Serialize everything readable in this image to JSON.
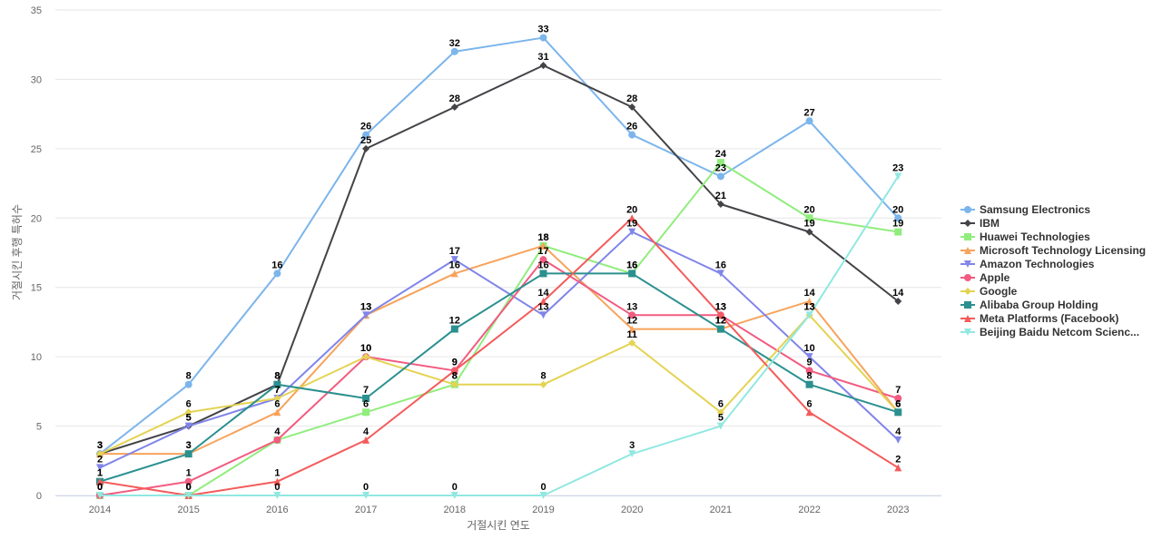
{
  "chart_data": {
    "type": "line",
    "title": "",
    "xlabel": "거절시킨 연도",
    "ylabel": "거절시킨 후행 특허수",
    "x": [
      "2014",
      "2015",
      "2016",
      "2017",
      "2018",
      "2019",
      "2020",
      "2021",
      "2022",
      "2023"
    ],
    "ylim": [
      0,
      35
    ],
    "yticks": [
      0,
      5,
      10,
      15,
      20,
      25,
      30,
      35
    ],
    "grid": true,
    "legend_position": "right",
    "series": [
      {
        "name": "Samsung Electronics",
        "color": "#7cb5ec",
        "marker": "circle",
        "values": [
          3,
          8,
          16,
          26,
          32,
          33,
          26,
          23,
          27,
          20
        ]
      },
      {
        "name": "IBM",
        "color": "#434348",
        "marker": "diamond",
        "values": [
          3,
          5,
          8,
          25,
          28,
          31,
          28,
          21,
          19,
          14
        ]
      },
      {
        "name": "Huawei Technologies",
        "color": "#90ed7d",
        "marker": "square",
        "values": [
          0,
          0,
          4,
          6,
          8,
          18,
          16,
          24,
          20,
          19
        ]
      },
      {
        "name": "Microsoft Technology Licensing",
        "color": "#f7a35c",
        "marker": "triangle",
        "values": [
          3,
          3,
          6,
          13,
          16,
          18,
          12,
          12,
          14,
          6
        ]
      },
      {
        "name": "Amazon Technologies",
        "color": "#8085e9",
        "marker": "triangle-down",
        "values": [
          2,
          5,
          7,
          13,
          17,
          13,
          19,
          16,
          10,
          4
        ]
      },
      {
        "name": "Apple",
        "color": "#f15c80",
        "marker": "circle",
        "values": [
          0,
          1,
          4,
          10,
          9,
          17,
          13,
          13,
          9,
          7
        ]
      },
      {
        "name": "Google",
        "color": "#e4d354",
        "marker": "diamond",
        "values": [
          3,
          6,
          7,
          10,
          8,
          8,
          11,
          6,
          13,
          6
        ]
      },
      {
        "name": "Alibaba Group Holding",
        "color": "#2b908f",
        "marker": "square",
        "values": [
          1,
          3,
          8,
          7,
          12,
          16,
          16,
          12,
          8,
          6
        ]
      },
      {
        "name": "Meta Platforms (Facebook)",
        "color": "#f45b5b",
        "marker": "triangle",
        "values": [
          1,
          0,
          1,
          4,
          9,
          14,
          20,
          13,
          6,
          2
        ]
      },
      {
        "name": "Beijing Baidu Netcom Scienc...",
        "color": "#91e8e1",
        "marker": "triangle-down",
        "values": [
          0,
          0,
          0,
          0,
          0,
          0,
          3,
          5,
          13,
          23
        ]
      }
    ]
  }
}
